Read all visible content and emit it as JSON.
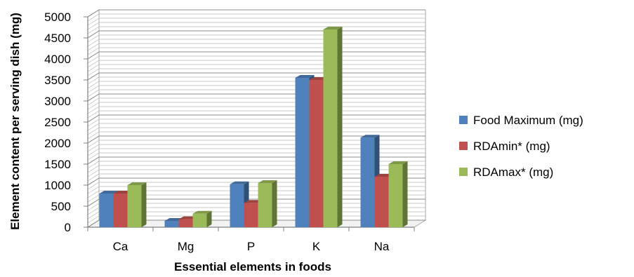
{
  "chart_data": {
    "type": "bar",
    "style": "3d-clustered-column",
    "categories": [
      "Ca",
      "Mg",
      "P",
      "K",
      "Na"
    ],
    "series": [
      {
        "name": "Food Maximum (mg)",
        "color": "#4f81bd",
        "values": [
          800,
          150,
          1020,
          3550,
          2130
        ]
      },
      {
        "name": "RDAmin* (mg)",
        "color": "#c0504d",
        "values": [
          800,
          190,
          580,
          3500,
          1200
        ]
      },
      {
        "name": "RDAmax* (mg)",
        "color": "#9bbb59",
        "values": [
          1000,
          320,
          1050,
          4700,
          1500
        ]
      }
    ],
    "xlabel": "Essential elements in foods",
    "ylabel": "Element content per serving dish (mg)",
    "ylim": [
      0,
      5000
    ],
    "yticks": [
      0,
      500,
      1000,
      1500,
      2000,
      2500,
      3000,
      3500,
      4000,
      4500,
      5000
    ],
    "grid": true,
    "legend_position": "right"
  }
}
